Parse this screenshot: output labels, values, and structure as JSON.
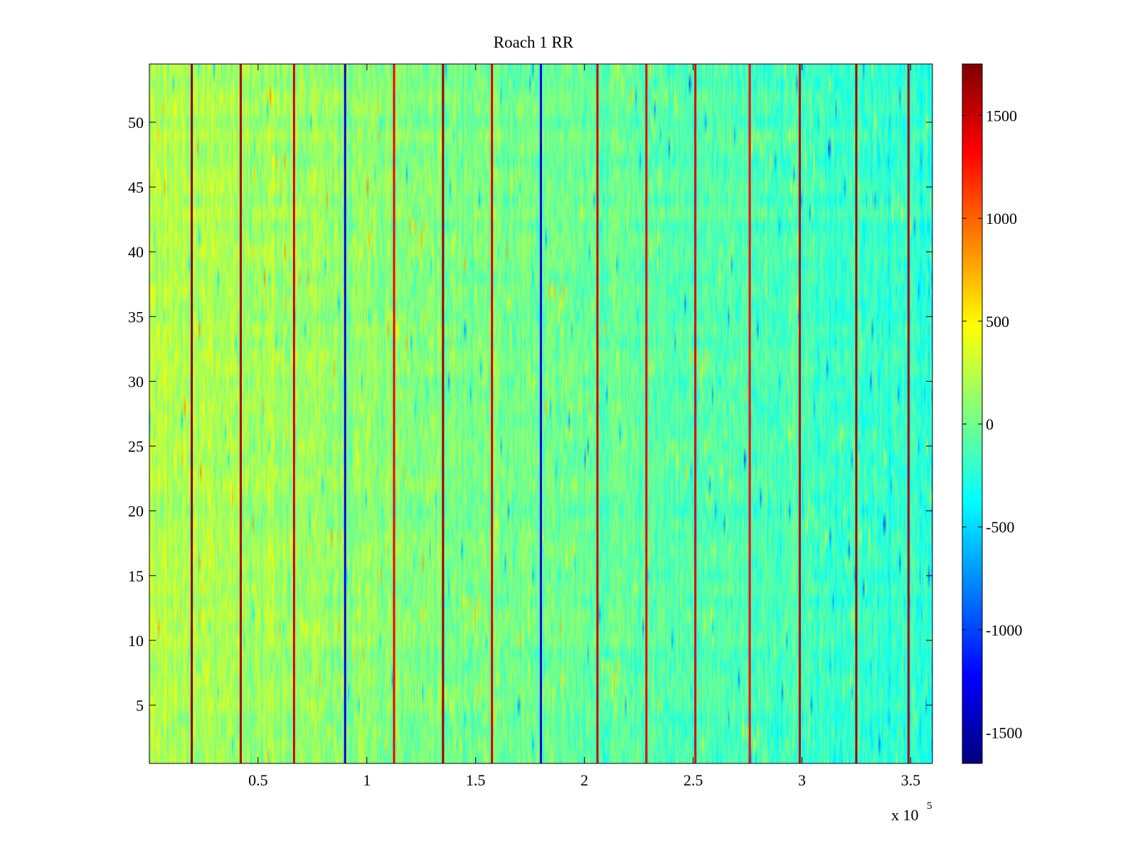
{
  "chart_data": {
    "type": "heatmap",
    "title": "Roach 1 RR",
    "xlabel": "",
    "ylabel": "",
    "x_range": [
      0,
      360000
    ],
    "y_range": [
      0.5,
      54.5
    ],
    "rows": 54,
    "x_ticks": [
      {
        "value": 50000,
        "label": "0.5"
      },
      {
        "value": 100000,
        "label": "1"
      },
      {
        "value": 150000,
        "label": "1.5"
      },
      {
        "value": 200000,
        "label": "2"
      },
      {
        "value": 250000,
        "label": "2.5"
      },
      {
        "value": 300000,
        "label": "3"
      },
      {
        "value": 350000,
        "label": "3.5"
      }
    ],
    "x_exponent": {
      "base": "x 10",
      "power": "5"
    },
    "y_ticks": [
      {
        "value": 5,
        "label": "5"
      },
      {
        "value": 10,
        "label": "10"
      },
      {
        "value": 15,
        "label": "15"
      },
      {
        "value": 20,
        "label": "20"
      },
      {
        "value": 25,
        "label": "25"
      },
      {
        "value": 30,
        "label": "30"
      },
      {
        "value": 35,
        "label": "35"
      },
      {
        "value": 40,
        "label": "40"
      },
      {
        "value": 45,
        "label": "45"
      },
      {
        "value": 50,
        "label": "50"
      }
    ],
    "colorbar": {
      "range": [
        -1650,
        1750
      ],
      "ticks": [
        {
          "value": 1500,
          "label": "1500"
        },
        {
          "value": 1000,
          "label": "1000"
        },
        {
          "value": 500,
          "label": "500"
        },
        {
          "value": 0,
          "label": "0"
        },
        {
          "value": -500,
          "label": "-500"
        },
        {
          "value": -1000,
          "label": "-1000"
        },
        {
          "value": -1500,
          "label": "-1500"
        }
      ],
      "colormap": "jet"
    },
    "strong_columns": [
      {
        "x": 19500,
        "value": 1700
      },
      {
        "x": 42000,
        "value": 1600
      },
      {
        "x": 66500,
        "value": 1450
      },
      {
        "x": 90000,
        "value": -1300
      },
      {
        "x": 112500,
        "value": 1350
      },
      {
        "x": 135000,
        "value": 1650
      },
      {
        "x": 157500,
        "value": 1450
      },
      {
        "x": 180000,
        "value": -1350
      },
      {
        "x": 206000,
        "value": 1500
      },
      {
        "x": 228500,
        "value": 1400
      },
      {
        "x": 251000,
        "value": 1450
      },
      {
        "x": 276000,
        "value": 1300
      },
      {
        "x": 299000,
        "value": 1550
      },
      {
        "x": 325000,
        "value": 1650
      },
      {
        "x": 349000,
        "value": 1600
      }
    ]
  }
}
